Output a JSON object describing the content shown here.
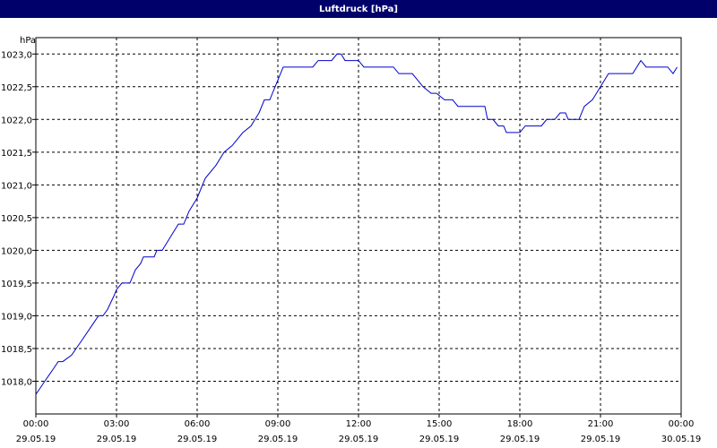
{
  "chart_data": {
    "type": "line",
    "title": "Luftdruck [hPa]",
    "y_label": "hPa",
    "xlim": [
      0,
      24
    ],
    "ylim": [
      1017.5,
      1023.25
    ],
    "xticks": [
      {
        "value": 0,
        "label": "00:00",
        "date": "29.05.19"
      },
      {
        "value": 3,
        "label": "03:00",
        "date": "29.05.19"
      },
      {
        "value": 6,
        "label": "06:00",
        "date": "29.05.19"
      },
      {
        "value": 9,
        "label": "09:00",
        "date": "29.05.19"
      },
      {
        "value": 12,
        "label": "12:00",
        "date": "29.05.19"
      },
      {
        "value": 15,
        "label": "15:00",
        "date": "29.05.19"
      },
      {
        "value": 18,
        "label": "18:00",
        "date": "29.05.19"
      },
      {
        "value": 21,
        "label": "21:00",
        "date": "29.05.19"
      },
      {
        "value": 24,
        "label": "00:00",
        "date": "30.05.19"
      }
    ],
    "yticks": [
      {
        "value": 1018,
        "label": "1018,0"
      },
      {
        "value": 1018.5,
        "label": "1018,5"
      },
      {
        "value": 1019,
        "label": "1019,0"
      },
      {
        "value": 1019.5,
        "label": "1019,5"
      },
      {
        "value": 1020,
        "label": "1020,0"
      },
      {
        "value": 1020.5,
        "label": "1020,5"
      },
      {
        "value": 1021,
        "label": "1021,0"
      },
      {
        "value": 1021.5,
        "label": "1021,5"
      },
      {
        "value": 1022,
        "label": "1022,0"
      },
      {
        "value": 1022.5,
        "label": "1022,5"
      },
      {
        "value": 1023,
        "label": "1023,0"
      }
    ],
    "grid": true,
    "series": [
      {
        "name": "Luftdruck",
        "color": "#0000cc",
        "x": [
          0,
          0.17,
          0.33,
          0.5,
          0.67,
          0.83,
          1.0,
          1.33,
          1.67,
          2.0,
          2.33,
          2.5,
          2.67,
          2.9,
          3.0,
          3.2,
          3.5,
          3.7,
          3.9,
          4.0,
          4.4,
          4.5,
          4.7,
          5.0,
          5.3,
          5.5,
          5.7,
          6.0,
          6.3,
          6.7,
          7.0,
          7.3,
          7.7,
          8.0,
          8.3,
          8.5,
          8.7,
          9.0,
          9.2,
          10.3,
          10.5,
          11.0,
          11.2,
          11.35,
          11.5,
          12.0,
          12.2,
          13.3,
          13.5,
          14.0,
          14.2,
          14.4,
          14.7,
          14.9,
          15.2,
          15.5,
          15.7,
          16.7,
          16.8,
          17.0,
          17.2,
          17.4,
          17.5,
          18.0,
          18.2,
          18.8,
          19.0,
          19.3,
          19.5,
          19.7,
          19.8,
          20.2,
          20.4,
          20.7,
          20.85,
          21.0,
          21.3,
          22.2,
          22.5,
          22.7,
          23.5,
          23.7,
          23.85
        ],
        "values": [
          1017.8,
          1017.9,
          1018.0,
          1018.1,
          1018.2,
          1018.3,
          1018.3,
          1018.4,
          1018.6,
          1018.8,
          1019.0,
          1019.0,
          1019.1,
          1019.3,
          1019.4,
          1019.5,
          1019.5,
          1019.7,
          1019.8,
          1019.9,
          1019.9,
          1020.0,
          1020.0,
          1020.2,
          1020.4,
          1020.4,
          1020.6,
          1020.8,
          1021.1,
          1021.3,
          1021.5,
          1021.6,
          1021.8,
          1021.9,
          1022.1,
          1022.3,
          1022.3,
          1022.6,
          1022.8,
          1022.8,
          1022.9,
          1022.9,
          1023.0,
          1023.0,
          1022.9,
          1022.9,
          1022.8,
          1022.8,
          1022.7,
          1022.7,
          1022.6,
          1022.5,
          1022.4,
          1022.4,
          1022.3,
          1022.3,
          1022.2,
          1022.2,
          1022.0,
          1022.0,
          1021.9,
          1021.9,
          1021.8,
          1021.8,
          1021.9,
          1021.9,
          1022.0,
          1022.0,
          1022.1,
          1022.1,
          1022.0,
          1022.0,
          1022.2,
          1022.3,
          1022.4,
          1022.5,
          1022.7,
          1022.7,
          1022.9,
          1022.8,
          1022.8,
          1022.7,
          1022.8
        ]
      }
    ]
  }
}
